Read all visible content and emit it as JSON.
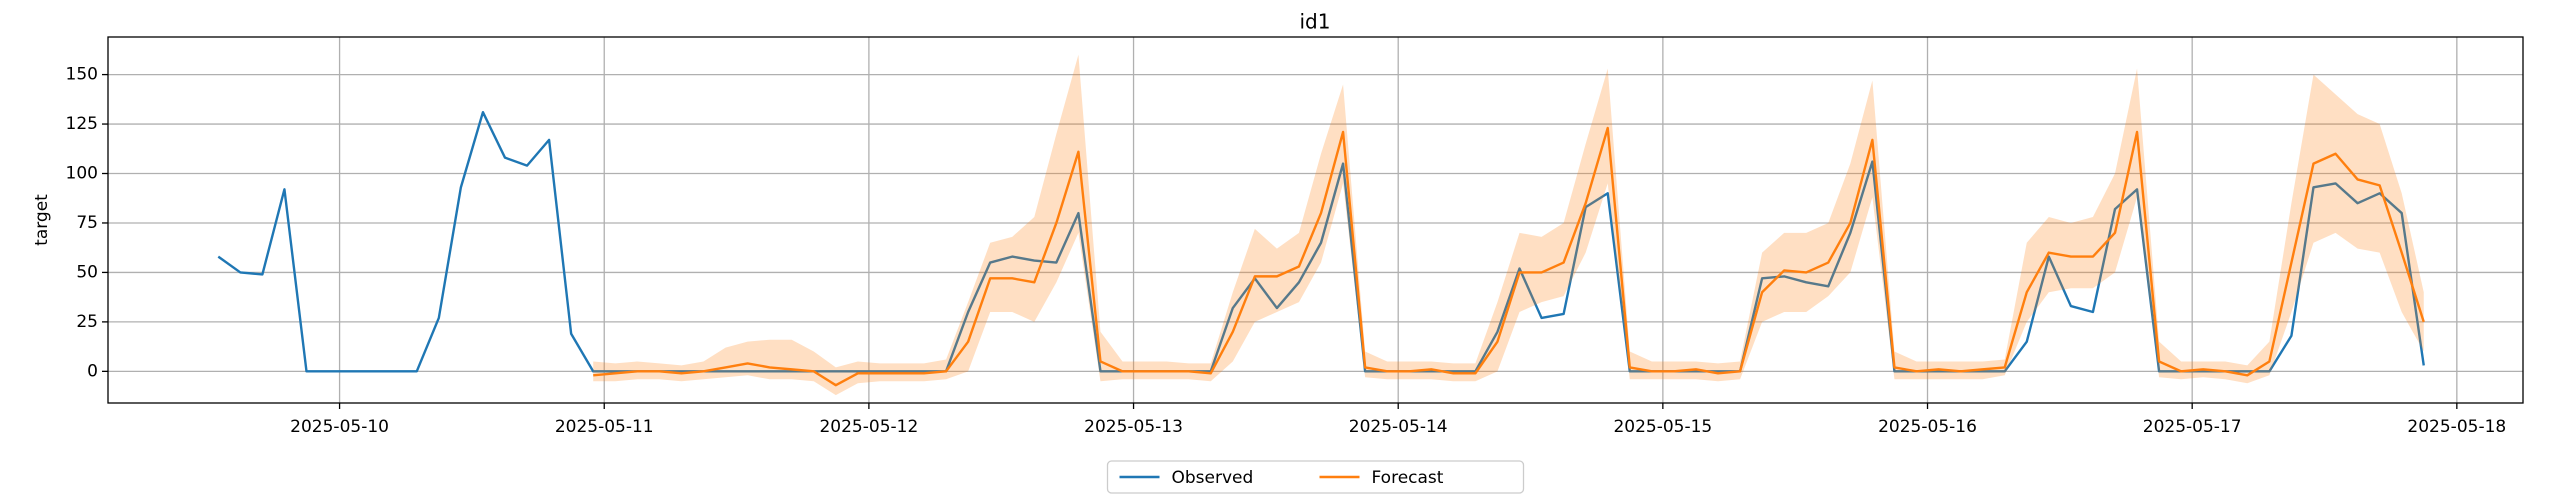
{
  "chart_data": {
    "type": "line",
    "title": "id1",
    "y_label": "target",
    "x": [
      "2025-05-09 13:00",
      "2025-05-09 15:00",
      "2025-05-09 17:00",
      "2025-05-09 19:00",
      "2025-05-09 21:00",
      "2025-05-09 23:00",
      "2025-05-10 01:00",
      "2025-05-10 03:00",
      "2025-05-10 05:00",
      "2025-05-10 07:00",
      "2025-05-10 09:00",
      "2025-05-10 11:00",
      "2025-05-10 13:00",
      "2025-05-10 15:00",
      "2025-05-10 17:00",
      "2025-05-10 19:00",
      "2025-05-10 21:00",
      "2025-05-10 23:00",
      "2025-05-11 01:00",
      "2025-05-11 03:00",
      "2025-05-11 05:00",
      "2025-05-11 07:00",
      "2025-05-11 09:00",
      "2025-05-11 11:00",
      "2025-05-11 13:00",
      "2025-05-11 15:00",
      "2025-05-11 17:00",
      "2025-05-11 19:00",
      "2025-05-11 21:00",
      "2025-05-11 23:00",
      "2025-05-12 01:00",
      "2025-05-12 03:00",
      "2025-05-12 05:00",
      "2025-05-12 07:00",
      "2025-05-12 09:00",
      "2025-05-12 11:00",
      "2025-05-12 13:00",
      "2025-05-12 15:00",
      "2025-05-12 17:00",
      "2025-05-12 19:00",
      "2025-05-12 21:00",
      "2025-05-12 23:00",
      "2025-05-13 01:00",
      "2025-05-13 03:00",
      "2025-05-13 05:00",
      "2025-05-13 07:00",
      "2025-05-13 09:00",
      "2025-05-13 11:00",
      "2025-05-13 13:00",
      "2025-05-13 15:00",
      "2025-05-13 17:00",
      "2025-05-13 19:00",
      "2025-05-13 21:00",
      "2025-05-13 23:00",
      "2025-05-14 01:00",
      "2025-05-14 03:00",
      "2025-05-14 05:00",
      "2025-05-14 07:00",
      "2025-05-14 09:00",
      "2025-05-14 11:00",
      "2025-05-14 13:00",
      "2025-05-14 15:00",
      "2025-05-14 17:00",
      "2025-05-14 19:00",
      "2025-05-14 21:00",
      "2025-05-14 23:00",
      "2025-05-15 01:00",
      "2025-05-15 03:00",
      "2025-05-15 05:00",
      "2025-05-15 07:00",
      "2025-05-15 09:00",
      "2025-05-15 11:00",
      "2025-05-15 13:00",
      "2025-05-15 15:00",
      "2025-05-15 17:00",
      "2025-05-15 19:00",
      "2025-05-15 21:00",
      "2025-05-15 23:00",
      "2025-05-16 01:00",
      "2025-05-16 03:00",
      "2025-05-16 05:00",
      "2025-05-16 07:00",
      "2025-05-16 09:00",
      "2025-05-16 11:00",
      "2025-05-16 13:00",
      "2025-05-16 15:00",
      "2025-05-16 17:00",
      "2025-05-16 19:00",
      "2025-05-16 21:00",
      "2025-05-16 23:00",
      "2025-05-17 01:00",
      "2025-05-17 03:00",
      "2025-05-17 05:00",
      "2025-05-17 07:00",
      "2025-05-17 09:00",
      "2025-05-17 11:00",
      "2025-05-17 13:00",
      "2025-05-17 15:00",
      "2025-05-17 17:00",
      "2025-05-17 19:00",
      "2025-05-17 21:00"
    ],
    "series": [
      {
        "name": "Observed",
        "color": "#1f77b4",
        "values": [
          58,
          50,
          49,
          92,
          0,
          0,
          0,
          0,
          0,
          0,
          27,
          93,
          131,
          108,
          104,
          117,
          19,
          0,
          0,
          0,
          0,
          0,
          0,
          0,
          0,
          0,
          0,
          0,
          0,
          0,
          0,
          0,
          0,
          0,
          30,
          55,
          58,
          56,
          55,
          80,
          0,
          0,
          0,
          0,
          0,
          0,
          32,
          47,
          32,
          45,
          65,
          105,
          0,
          0,
          0,
          0,
          0,
          0,
          20,
          52,
          27,
          29,
          83,
          90,
          0,
          0,
          0,
          0,
          0,
          0,
          47,
          48,
          45,
          43,
          70,
          106,
          0,
          0,
          0,
          0,
          0,
          0,
          15,
          58,
          33,
          30,
          82,
          92,
          0,
          0,
          0,
          0,
          0,
          0,
          18,
          93,
          95,
          85,
          90,
          80,
          3
        ]
      },
      {
        "name": "Forecast",
        "color": "#ff7f0e",
        "values": [
          null,
          null,
          null,
          null,
          null,
          null,
          null,
          null,
          null,
          null,
          null,
          null,
          null,
          null,
          null,
          null,
          null,
          -2,
          -1,
          0,
          0,
          -1,
          0,
          2,
          4,
          2,
          1,
          0,
          -7,
          -1,
          -1,
          -1,
          -1,
          0,
          15,
          47,
          47,
          45,
          75,
          111,
          5,
          0,
          0,
          0,
          0,
          -1,
          20,
          48,
          48,
          53,
          80,
          121,
          2,
          0,
          0,
          1,
          -1,
          -1,
          15,
          50,
          50,
          55,
          85,
          123,
          2,
          0,
          0,
          1,
          -1,
          0,
          40,
          51,
          50,
          55,
          75,
          117,
          2,
          0,
          1,
          0,
          1,
          2,
          40,
          60,
          58,
          58,
          70,
          121,
          5,
          0,
          1,
          0,
          -2,
          5,
          55,
          105,
          110,
          97,
          94,
          60,
          25
        ],
        "lower": [
          null,
          null,
          null,
          null,
          null,
          null,
          null,
          null,
          null,
          null,
          null,
          null,
          null,
          null,
          null,
          null,
          null,
          -5,
          -5,
          -4,
          -4,
          -5,
          -4,
          -3,
          -2,
          -4,
          -4,
          -5,
          -12,
          -6,
          -5,
          -5,
          -5,
          -4,
          0,
          30,
          30,
          25,
          45,
          70,
          -5,
          -4,
          -4,
          -4,
          -4,
          -5,
          5,
          25,
          30,
          35,
          55,
          95,
          -3,
          -4,
          -4,
          -4,
          -5,
          -5,
          0,
          30,
          35,
          38,
          60,
          95,
          -4,
          -4,
          -4,
          -4,
          -5,
          -4,
          25,
          30,
          30,
          38,
          50,
          88,
          -4,
          -4,
          -4,
          -4,
          -4,
          -2,
          25,
          40,
          42,
          42,
          50,
          88,
          -3,
          -4,
          -3,
          -4,
          -6,
          -2,
          30,
          65,
          70,
          62,
          60,
          30,
          10
        ],
        "upper": [
          null,
          null,
          null,
          null,
          null,
          null,
          null,
          null,
          null,
          null,
          null,
          null,
          null,
          null,
          null,
          null,
          null,
          5,
          4,
          5,
          4,
          3,
          5,
          12,
          15,
          16,
          16,
          10,
          2,
          5,
          4,
          4,
          4,
          6,
          35,
          65,
          68,
          78,
          120,
          160,
          20,
          5,
          5,
          5,
          4,
          4,
          40,
          72,
          62,
          70,
          110,
          145,
          10,
          5,
          5,
          5,
          4,
          4,
          35,
          70,
          68,
          75,
          115,
          153,
          10,
          5,
          5,
          5,
          4,
          5,
          60,
          70,
          70,
          75,
          105,
          147,
          10,
          5,
          5,
          5,
          5,
          6,
          65,
          78,
          75,
          78,
          100,
          153,
          15,
          5,
          5,
          5,
          3,
          15,
          85,
          150,
          140,
          130,
          125,
          90,
          40
        ]
      }
    ],
    "xlim": [
      "2025-05-09 03:00",
      "2025-05-18 06:00"
    ],
    "xticks": [
      "2025-05-10",
      "2025-05-11",
      "2025-05-12",
      "2025-05-13",
      "2025-05-14",
      "2025-05-15",
      "2025-05-16",
      "2025-05-17",
      "2025-05-18"
    ],
    "ylim": [
      -16,
      169
    ],
    "yticks": [
      0,
      25,
      50,
      75,
      100,
      125,
      150
    ],
    "grid": true,
    "legend": "lower center",
    "band_opacity": 0.25
  }
}
